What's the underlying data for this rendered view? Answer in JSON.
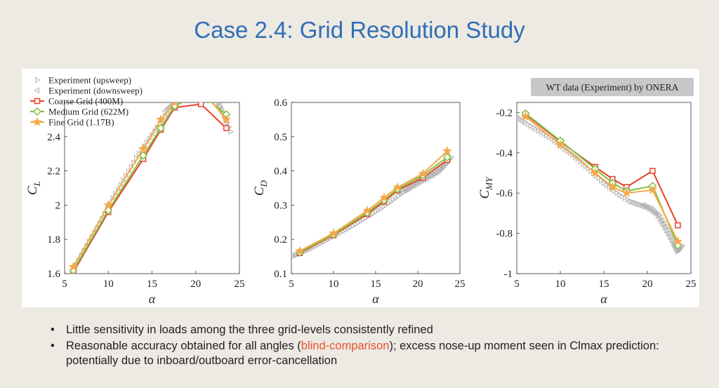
{
  "slide": {
    "title": "Case 2.4: Grid Resolution Study",
    "badge": "WT data (Experiment) by ONERA",
    "bullets": [
      {
        "text": "Little sensitivity in loads among the three grid-levels consistently refined"
      },
      {
        "pre": "Reasonable accuracy obtained for all angles (",
        "highlight": "blind-comparison",
        "post": "); excess nose-up moment seen in Clmax prediction: potentially due to inboard/outboard error-cancellation"
      }
    ]
  },
  "colors": {
    "experiment": "#b3b3b3",
    "coarse": "#e8412a",
    "medium": "#7ec242",
    "fine": "#f7a84a",
    "highlight": "#e8532e",
    "title": "#2f6fb5"
  },
  "chart_data": [
    {
      "type": "line",
      "ylabel": "C_L",
      "xlabel": "α",
      "xlim": [
        5,
        25
      ],
      "ylim": [
        1.6,
        2.6
      ],
      "xticks": [
        5,
        10,
        15,
        20,
        25
      ],
      "yticks": [
        1.6,
        1.8,
        2.0,
        2.2,
        2.4
      ],
      "ytick_labels": [
        "1.6",
        "1.8",
        "2",
        "2.2",
        "2.4"
      ],
      "legend": {
        "placement": "top-left",
        "entries": [
          "Experiment (upsweep)",
          "Experiment (downsweep)",
          "Coarse Grid (400M)",
          "Medium Grid (622M)",
          "Fine Grid (1.17B)"
        ]
      },
      "series": [
        {
          "name": "Coarse Grid (400M)",
          "x": [
            6,
            10,
            14,
            16,
            17.6,
            20.6,
            23.5
          ],
          "y": [
            1.61,
            1.96,
            2.27,
            2.44,
            2.57,
            2.59,
            2.45
          ]
        },
        {
          "name": "Medium Grid (622M)",
          "x": [
            6,
            10,
            14,
            16,
            17.6,
            20.6,
            23.5
          ],
          "y": [
            1.62,
            1.97,
            2.29,
            2.45,
            2.58,
            2.65,
            2.53
          ]
        },
        {
          "name": "Fine Grid (1.17B)",
          "x": [
            6,
            10,
            14,
            16,
            17.6,
            20.6,
            23.5
          ],
          "y": [
            1.64,
            2.0,
            2.33,
            2.5,
            2.6,
            2.68,
            2.5
          ]
        },
        {
          "name": "Experiment (upsweep)",
          "x": [
            6,
            7.5,
            9,
            10.5,
            12,
            13.5,
            15,
            16.5,
            18,
            19,
            20,
            21,
            22,
            23,
            24
          ],
          "y": [
            1.62,
            1.76,
            1.89,
            2.04,
            2.17,
            2.3,
            2.41,
            2.52,
            2.61,
            2.65,
            2.67,
            2.67,
            2.65,
            2.56,
            2.43
          ]
        },
        {
          "name": "Experiment (downsweep)",
          "x": [
            23.5,
            22.5,
            21.5,
            20.5,
            19.5,
            18.5,
            17.5,
            16.5
          ],
          "y": [
            2.49,
            2.6,
            2.66,
            2.67,
            2.66,
            2.64,
            2.6,
            2.55
          ]
        }
      ]
    },
    {
      "type": "line",
      "ylabel": "C_D",
      "xlabel": "α",
      "xlim": [
        5,
        25
      ],
      "ylim": [
        0.1,
        0.6
      ],
      "xticks": [
        5,
        10,
        15,
        20,
        25
      ],
      "yticks": [
        0.1,
        0.2,
        0.3,
        0.4,
        0.5,
        0.6
      ],
      "ytick_labels": [
        "0.1",
        "0.2",
        "0.3",
        "0.4",
        "0.5",
        "0.6"
      ],
      "series": [
        {
          "name": "Coarse Grid (400M)",
          "x": [
            6,
            10,
            14,
            16,
            17.6,
            20.6,
            23.5
          ],
          "y": [
            0.16,
            0.212,
            0.274,
            0.31,
            0.343,
            0.38,
            0.432
          ]
        },
        {
          "name": "Medium Grid (622M)",
          "x": [
            6,
            10,
            14,
            16,
            17.6,
            20.6,
            23.5
          ],
          "y": [
            0.162,
            0.214,
            0.278,
            0.315,
            0.347,
            0.387,
            0.44
          ]
        },
        {
          "name": "Fine Grid (1.17B)",
          "x": [
            6,
            10,
            14,
            16,
            17.6,
            20.6,
            23.5
          ],
          "y": [
            0.166,
            0.218,
            0.284,
            0.322,
            0.352,
            0.392,
            0.458
          ]
        },
        {
          "name": "Experiment (upsweep)",
          "x": [
            5,
            6,
            7.5,
            9,
            10.5,
            12,
            13.5,
            15,
            16.5,
            18,
            19,
            20,
            21,
            22,
            23,
            24
          ],
          "y": [
            0.15,
            0.158,
            0.175,
            0.195,
            0.215,
            0.235,
            0.257,
            0.28,
            0.305,
            0.332,
            0.35,
            0.367,
            0.38,
            0.392,
            0.41,
            0.44
          ]
        },
        {
          "name": "Experiment (downsweep)",
          "x": [
            23.5,
            22.5,
            21.5,
            20.5,
            19.5,
            18.5
          ],
          "y": [
            0.428,
            0.4,
            0.385,
            0.372,
            0.358,
            0.343
          ]
        }
      ]
    },
    {
      "type": "line",
      "ylabel": "C_MY",
      "xlabel": "α",
      "xlim": [
        5,
        25
      ],
      "ylim": [
        -1.0,
        -0.15
      ],
      "xticks": [
        5,
        10,
        15,
        20,
        25
      ],
      "yticks": [
        -1.0,
        -0.8,
        -0.6,
        -0.4,
        -0.2
      ],
      "ytick_labels": [
        "-1",
        "-0.8",
        "-0.6",
        "-0.4",
        "-0.2"
      ],
      "series": [
        {
          "name": "Coarse Grid (400M)",
          "x": [
            6,
            10,
            14,
            16,
            17.6,
            20.6,
            23.5
          ],
          "y": [
            -0.21,
            -0.345,
            -0.47,
            -0.53,
            -0.57,
            -0.49,
            -0.76
          ]
        },
        {
          "name": "Medium Grid (622M)",
          "x": [
            6,
            10,
            14,
            16,
            17.6,
            20.6,
            23.5
          ],
          "y": [
            -0.205,
            -0.34,
            -0.48,
            -0.55,
            -0.59,
            -0.565,
            -0.86
          ]
        },
        {
          "name": "Fine Grid (1.17B)",
          "x": [
            6,
            10,
            14,
            16,
            17.6,
            20.6,
            23.5
          ],
          "y": [
            -0.22,
            -0.36,
            -0.5,
            -0.57,
            -0.6,
            -0.585,
            -0.84
          ]
        },
        {
          "name": "Experiment (upsweep)",
          "x": [
            5,
            6,
            7.5,
            9,
            10.5,
            12,
            13.5,
            15,
            16.5,
            18,
            19,
            20,
            21,
            22,
            23,
            23.5,
            24
          ],
          "y": [
            -0.22,
            -0.25,
            -0.29,
            -0.33,
            -0.38,
            -0.43,
            -0.49,
            -0.55,
            -0.6,
            -0.64,
            -0.655,
            -0.67,
            -0.7,
            -0.77,
            -0.85,
            -0.89,
            -0.86
          ]
        },
        {
          "name": "Experiment (downsweep)",
          "x": [
            23.5,
            22.5,
            21.5,
            20.5,
            19.5
          ],
          "y": [
            -0.88,
            -0.8,
            -0.72,
            -0.68,
            -0.66
          ]
        }
      ]
    }
  ]
}
